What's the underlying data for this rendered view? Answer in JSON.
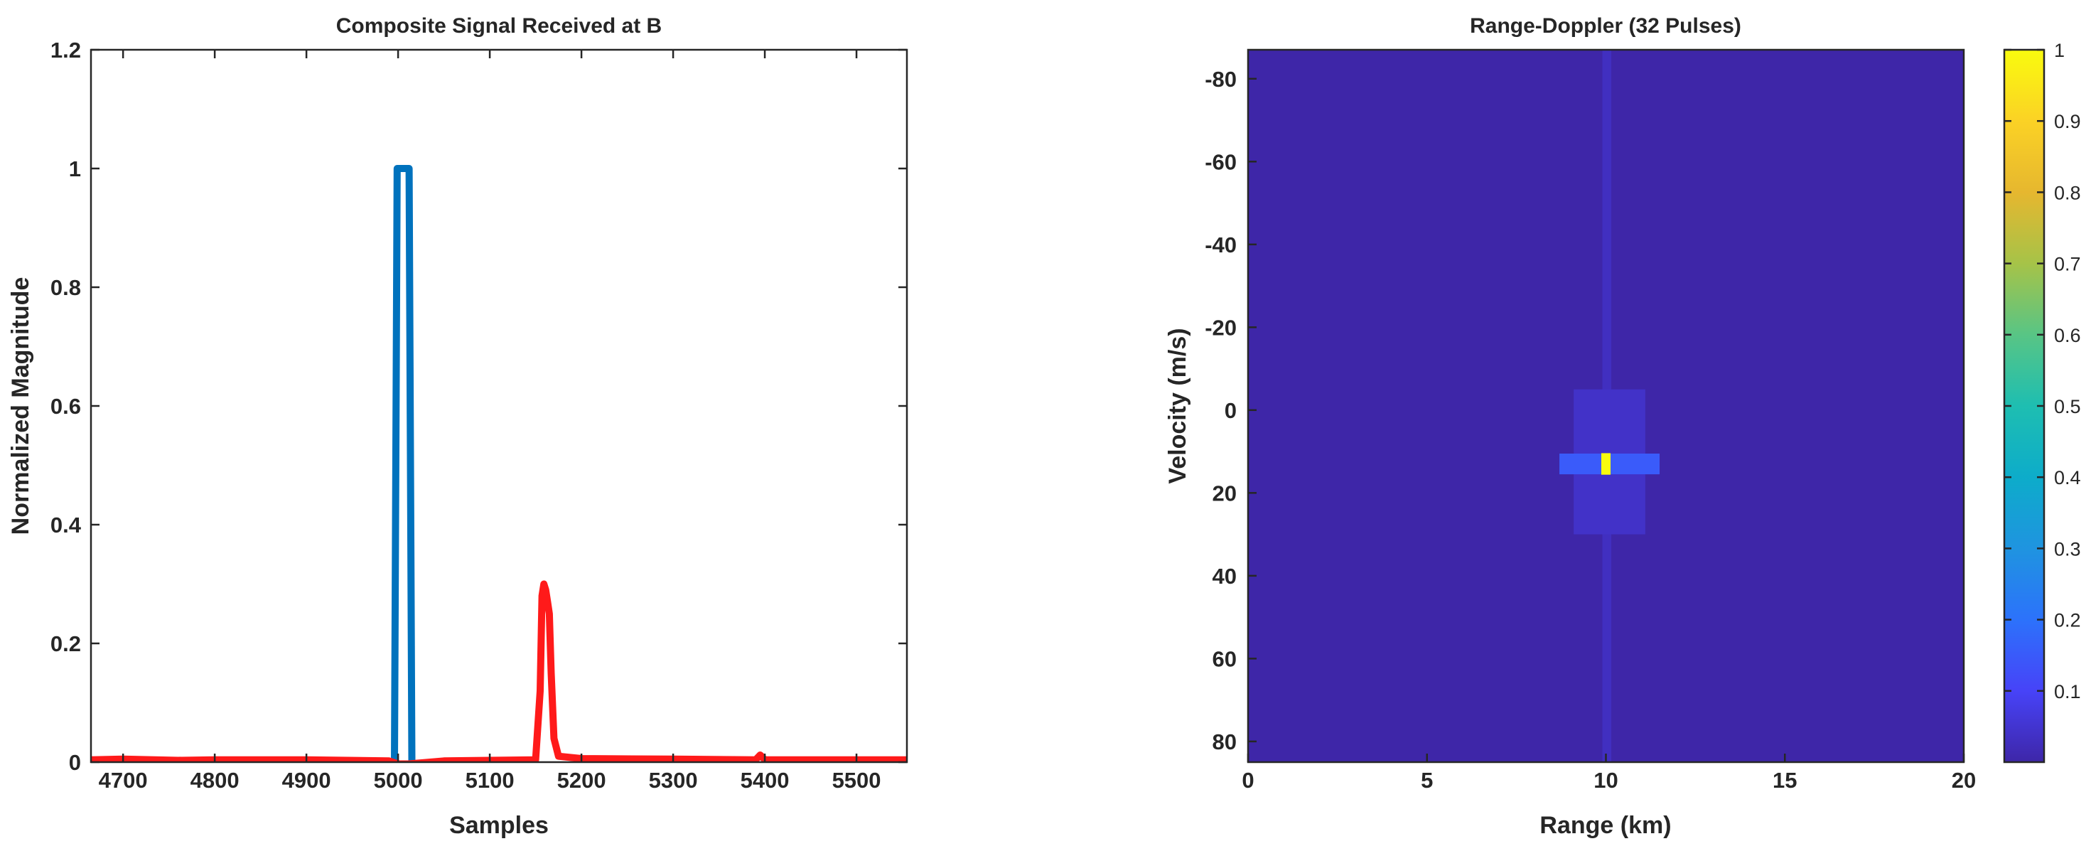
{
  "chart_data": [
    {
      "type": "line",
      "title": "Composite Signal Received at B",
      "xlabel": "Samples",
      "ylabel": "Normalized Magnitude",
      "xlim": [
        4665,
        5555
      ],
      "ylim": [
        0,
        1.2
      ],
      "xticks": [
        "4700",
        "4800",
        "4900",
        "5000",
        "5100",
        "5200",
        "5300",
        "5400",
        "5500"
      ],
      "yticks": [
        "0",
        "0.2",
        "0.4",
        "0.6",
        "0.8",
        "1",
        "1.2"
      ],
      "grid": false,
      "series": [
        {
          "color": "#0072bd",
          "x": [
            4996,
            4999,
            5001,
            5010,
            5012,
            5015
          ],
          "y": [
            0,
            1,
            1,
            1,
            1,
            0
          ]
        },
        {
          "color": "#ff1a1a",
          "x": [
            4665,
            4700,
            4760,
            4800,
            4900,
            4990,
            5000,
            5012,
            5050,
            5100,
            5150,
            5155,
            5157,
            5159,
            5161,
            5163,
            5165,
            5167,
            5170,
            5175,
            5200,
            5300,
            5390,
            5395,
            5400,
            5500,
            5555
          ],
          "y": [
            0.004,
            0.005,
            0.003,
            0.004,
            0.004,
            0.002,
            -0.003,
            -0.003,
            0.002,
            0.003,
            0.004,
            0.12,
            0.28,
            0.3,
            0.29,
            0.27,
            0.25,
            0.15,
            0.04,
            0.01,
            0.006,
            0.005,
            0.004,
            0.012,
            0.004,
            0.004,
            0.004
          ]
        }
      ]
    },
    {
      "type": "heatmap",
      "title": "Range-Doppler (32 Pulses)",
      "xlabel": "Range (km)",
      "ylabel": "Velocity (m/s)",
      "xlim": [
        0,
        20
      ],
      "ylim": [
        -87,
        85
      ],
      "y_reversed": true,
      "xticks": [
        "0",
        "5",
        "10",
        "15",
        "20"
      ],
      "yticks": [
        "-80",
        "-60",
        "-40",
        "-20",
        "0",
        "20",
        "40",
        "60",
        "80"
      ],
      "background_value": 0,
      "peak": {
        "range_km": 10,
        "velocity_mps": 13,
        "value": 1
      },
      "sidelobes": [
        {
          "range_km": [
            8.7,
            11.5
          ],
          "velocity_mps": [
            10.5,
            15.5
          ],
          "value": 0.15
        },
        {
          "range_km": [
            9.1,
            11.1
          ],
          "velocity_mps": [
            -5,
            30
          ],
          "value": 0.04
        },
        {
          "range_km": [
            9.9,
            10.15
          ],
          "velocity_mps": [
            -87,
            85
          ],
          "value": 0.03
        }
      ],
      "colorbar": {
        "range": [
          0,
          1
        ],
        "ticks": [
          "0.1",
          "0.2",
          "0.3",
          "0.4",
          "0.5",
          "0.6",
          "0.7",
          "0.8",
          "0.9",
          "1"
        ],
        "colormap": [
          "#3e26a8",
          "#4743f8",
          "#2c72fb",
          "#1f94e0",
          "#0dacca",
          "#1ebeb1",
          "#58c585",
          "#a6c348",
          "#e6b72f",
          "#fbd225",
          "#f9fb0e"
        ]
      }
    }
  ]
}
